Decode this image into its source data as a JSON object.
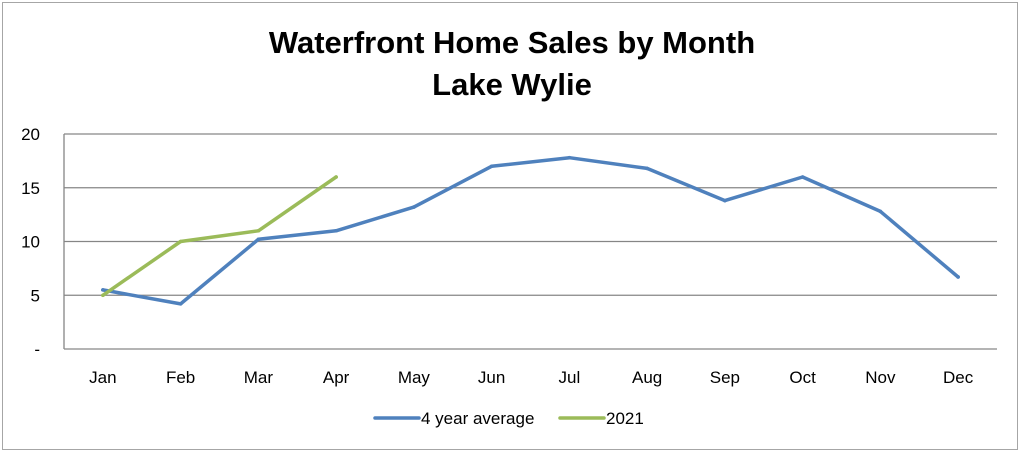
{
  "chart_data": {
    "type": "line",
    "title": "Waterfront Home Sales by Month",
    "subtitle": "Lake Wylie",
    "categories": [
      "Jan",
      "Feb",
      "Mar",
      "Apr",
      "May",
      "Jun",
      "Jul",
      "Aug",
      "Sep",
      "Oct",
      "Nov",
      "Dec"
    ],
    "series": [
      {
        "name": "4 year average",
        "color": "#4f81bd",
        "values": [
          5.5,
          4.2,
          10.2,
          11.0,
          13.2,
          17.0,
          17.8,
          16.8,
          13.8,
          16.0,
          12.8,
          6.7
        ]
      },
      {
        "name": "2021",
        "color": "#9bbb59",
        "values": [
          5.0,
          10.0,
          11.0,
          16.0,
          null,
          null,
          null,
          null,
          null,
          null,
          null,
          null
        ]
      }
    ],
    "ylim": [
      0,
      20
    ],
    "yticks": [
      {
        "value": 0,
        "label": "-"
      },
      {
        "value": 5,
        "label": "5"
      },
      {
        "value": 10,
        "label": "10"
      },
      {
        "value": 15,
        "label": "15"
      },
      {
        "value": 20,
        "label": "20"
      }
    ],
    "grid": true,
    "legend_position": "bottom"
  }
}
